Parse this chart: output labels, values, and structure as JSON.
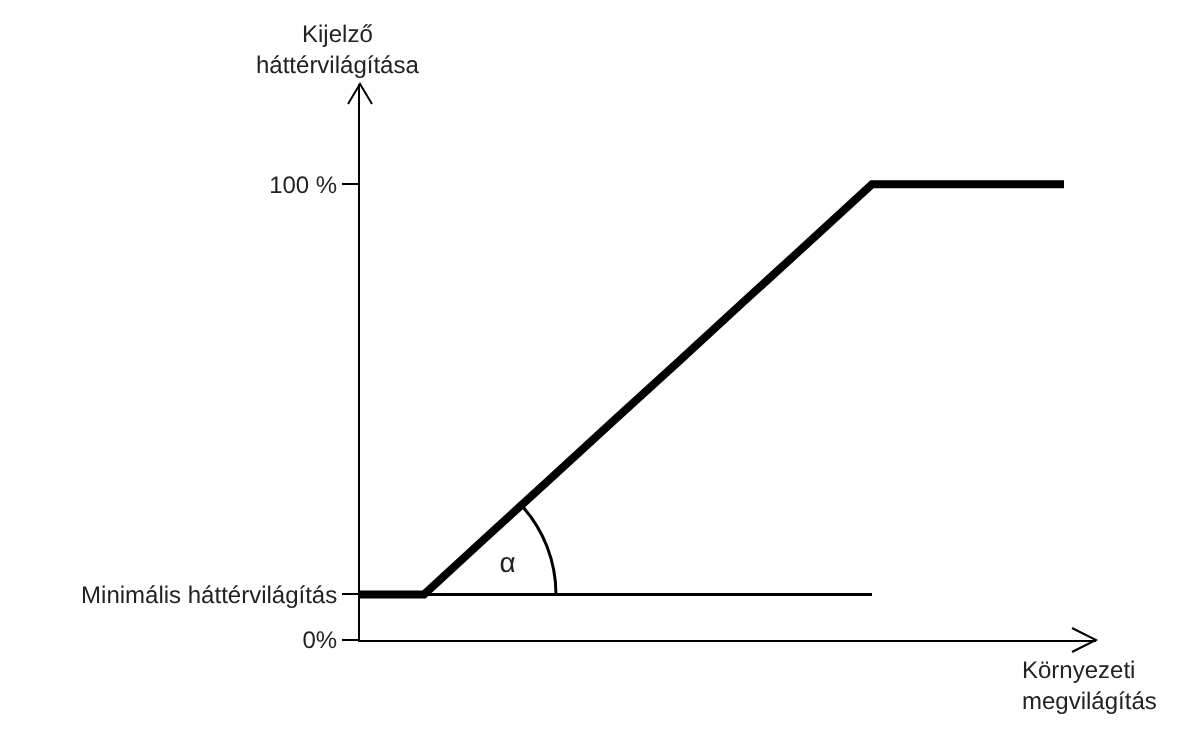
{
  "chart_data": {
    "type": "line",
    "xlabel": "Környezeti megvilágítás",
    "ylabel": "Kijelző háttérvilágítása",
    "categories": [
      null,
      null,
      null,
      null,
      null,
      null,
      null,
      null,
      null,
      null,
      null,
      null
    ],
    "series": [
      {
        "color": "#000000",
        "values": [
          10,
          10,
          22.9,
          35.7,
          48.6,
          61.4,
          74.3,
          87.1,
          100,
          100,
          100,
          100
        ]
      },
      {
        "color": "#000000",
        "values": [
          10,
          10,
          10,
          10,
          10,
          10,
          10,
          10,
          10,
          null,
          null,
          null
        ]
      }
    ],
    "ylim": [
      0,
      122
    ],
    "yticks": [
      {
        "value": 0,
        "label": "0%"
      },
      {
        "value": 10,
        "label": "Minimális háttérvilágítás"
      },
      {
        "value": 100,
        "label": "100 %"
      }
    ],
    "annotations": [
      "α"
    ],
    "grid": false,
    "marker": "none",
    "line_style": "solid"
  }
}
